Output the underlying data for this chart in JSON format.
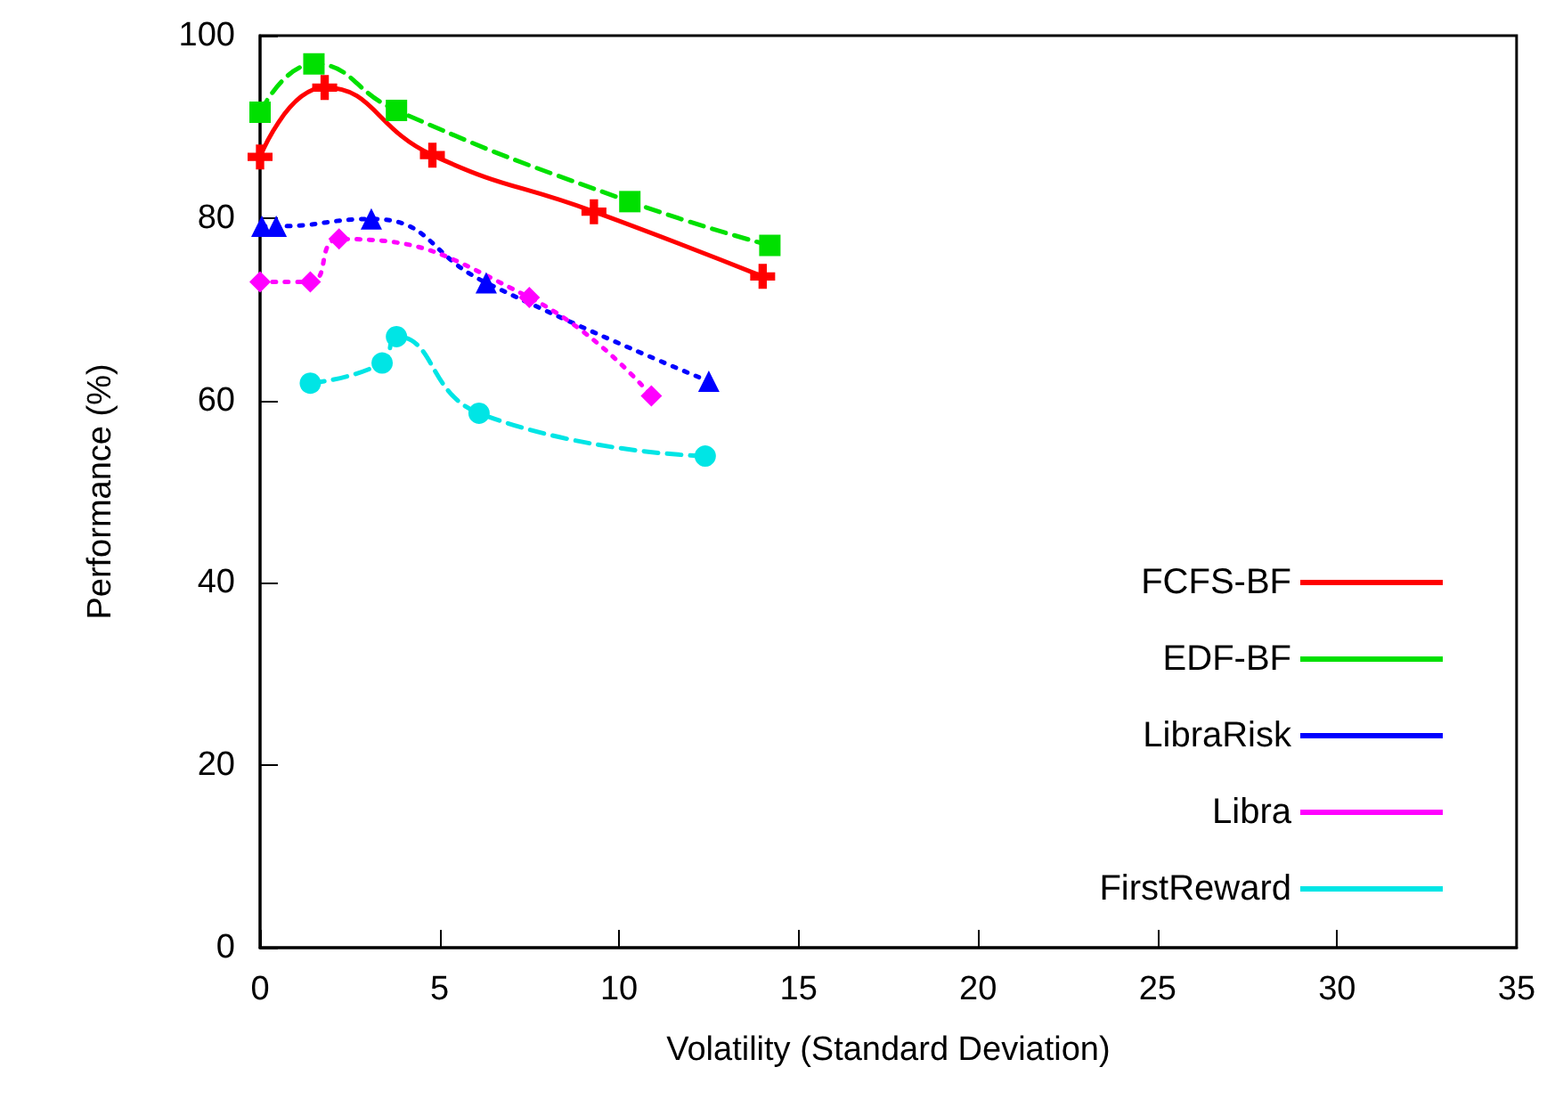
{
  "chart_data": {
    "type": "line",
    "xlabel": "Volatility (Standard Deviation)",
    "ylabel": "Performance (%)",
    "xlim": [
      0,
      35
    ],
    "xticks": [
      0,
      5,
      10,
      15,
      20,
      25,
      30,
      35
    ],
    "ylim": [
      0,
      100
    ],
    "yticks": [
      0,
      20,
      40,
      60,
      80,
      100
    ],
    "grid": false,
    "legend": "bottom right",
    "series": [
      {
        "name": "FCFS-BF",
        "color": "#ff0000",
        "marker": "cross",
        "line_style": "solid",
        "x": [
          0,
          1.8,
          4.8,
          9.3,
          14.0
        ],
        "values": [
          86.7,
          94.3,
          86.9,
          80.7,
          73.6
        ]
      },
      {
        "name": "EDF-BF",
        "color": "#00e000",
        "marker": "square",
        "line_style": "dashed",
        "x": [
          0,
          1.5,
          3.8,
          10.3,
          14.2
        ],
        "values": [
          91.6,
          96.9,
          91.8,
          81.8,
          77.0
        ]
      },
      {
        "name": "LibraRisk",
        "color": "#0000ff",
        "marker": "triangle",
        "line_style": "dotted",
        "x": [
          0.05,
          0.45,
          3.1,
          6.3,
          12.5
        ],
        "values": [
          79.1,
          79.1,
          79.9,
          72.9,
          62.1
        ]
      },
      {
        "name": "Libra",
        "color": "#ff00ff",
        "marker": "diamond",
        "line_style": "dotted",
        "x": [
          0,
          1.4,
          2.2,
          7.5,
          10.9
        ],
        "values": [
          73.0,
          73.0,
          77.7,
          71.3,
          60.5
        ]
      },
      {
        "name": "FirstReward",
        "color": "#00e5e5",
        "marker": "circle",
        "line_style": "dashed",
        "x": [
          1.4,
          3.4,
          3.8,
          6.1,
          12.4
        ],
        "values": [
          61.9,
          64.1,
          67.0,
          58.6,
          53.9
        ]
      }
    ]
  }
}
